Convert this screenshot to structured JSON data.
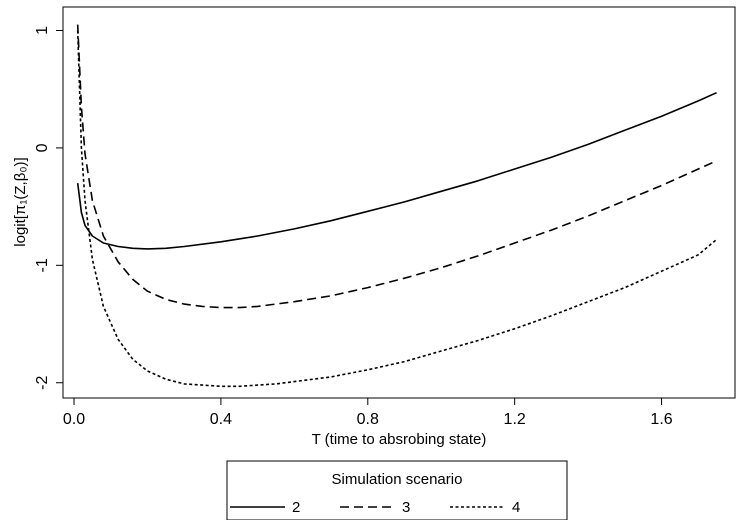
{
  "chart_data": {
    "type": "line",
    "title": "",
    "xlabel": "T (time to absrobing state)",
    "ylabel": "logit[π₁(Z,β₀)]",
    "xlim": [
      -0.03,
      1.8
    ],
    "ylim": [
      -2.13,
      1.2
    ],
    "xticks": [
      0.0,
      0.4,
      0.8,
      1.2,
      1.6
    ],
    "xtick_labels": [
      "0.0",
      "0.4",
      "0.8",
      "1.2",
      "1.6"
    ],
    "yticks": [
      1,
      0,
      -1,
      -2
    ],
    "ytick_labels": [
      "1",
      "0",
      "-1",
      "-2"
    ],
    "grid": false,
    "legend": {
      "title": "Simulation scenario",
      "placement": "bottom-center"
    },
    "series": [
      {
        "name": "2",
        "style": "solid",
        "x": [
          0.01,
          0.02,
          0.03,
          0.05,
          0.08,
          0.12,
          0.16,
          0.2,
          0.25,
          0.3,
          0.4,
          0.5,
          0.6,
          0.7,
          0.8,
          0.9,
          1.0,
          1.1,
          1.2,
          1.3,
          1.4,
          1.5,
          1.6,
          1.7,
          1.75
        ],
        "y": [
          -0.3,
          -0.55,
          -0.66,
          -0.75,
          -0.81,
          -0.84,
          -0.855,
          -0.86,
          -0.855,
          -0.84,
          -0.8,
          -0.75,
          -0.69,
          -0.62,
          -0.54,
          -0.46,
          -0.37,
          -0.28,
          -0.18,
          -0.08,
          0.03,
          0.15,
          0.27,
          0.4,
          0.47
        ]
      },
      {
        "name": "3",
        "style": "dashed",
        "x": [
          0.01,
          0.02,
          0.03,
          0.05,
          0.08,
          0.12,
          0.16,
          0.2,
          0.25,
          0.3,
          0.35,
          0.4,
          0.45,
          0.5,
          0.6,
          0.7,
          0.8,
          0.9,
          1.0,
          1.1,
          1.2,
          1.3,
          1.4,
          1.5,
          1.6,
          1.7,
          1.75
        ],
        "y": [
          1.05,
          0.35,
          -0.05,
          -0.45,
          -0.75,
          -0.97,
          -1.12,
          -1.22,
          -1.29,
          -1.33,
          -1.35,
          -1.36,
          -1.36,
          -1.35,
          -1.31,
          -1.26,
          -1.19,
          -1.11,
          -1.02,
          -0.92,
          -0.81,
          -0.7,
          -0.58,
          -0.45,
          -0.32,
          -0.18,
          -0.11
        ]
      },
      {
        "name": "4",
        "style": "dotted",
        "x": [
          0.01,
          0.02,
          0.03,
          0.05,
          0.08,
          0.12,
          0.16,
          0.2,
          0.25,
          0.3,
          0.35,
          0.4,
          0.45,
          0.5,
          0.55,
          0.6,
          0.7,
          0.8,
          0.9,
          1.0,
          1.1,
          1.2,
          1.3,
          1.4,
          1.5,
          1.6,
          1.7,
          1.75
        ],
        "y": [
          1.0,
          0.0,
          -0.45,
          -0.95,
          -1.35,
          -1.63,
          -1.8,
          -1.9,
          -1.97,
          -2.01,
          -2.02,
          -2.03,
          -2.03,
          -2.02,
          -2.01,
          -1.99,
          -1.95,
          -1.89,
          -1.82,
          -1.73,
          -1.64,
          -1.54,
          -1.43,
          -1.31,
          -1.19,
          -1.05,
          -0.91,
          -0.78
        ]
      }
    ]
  }
}
